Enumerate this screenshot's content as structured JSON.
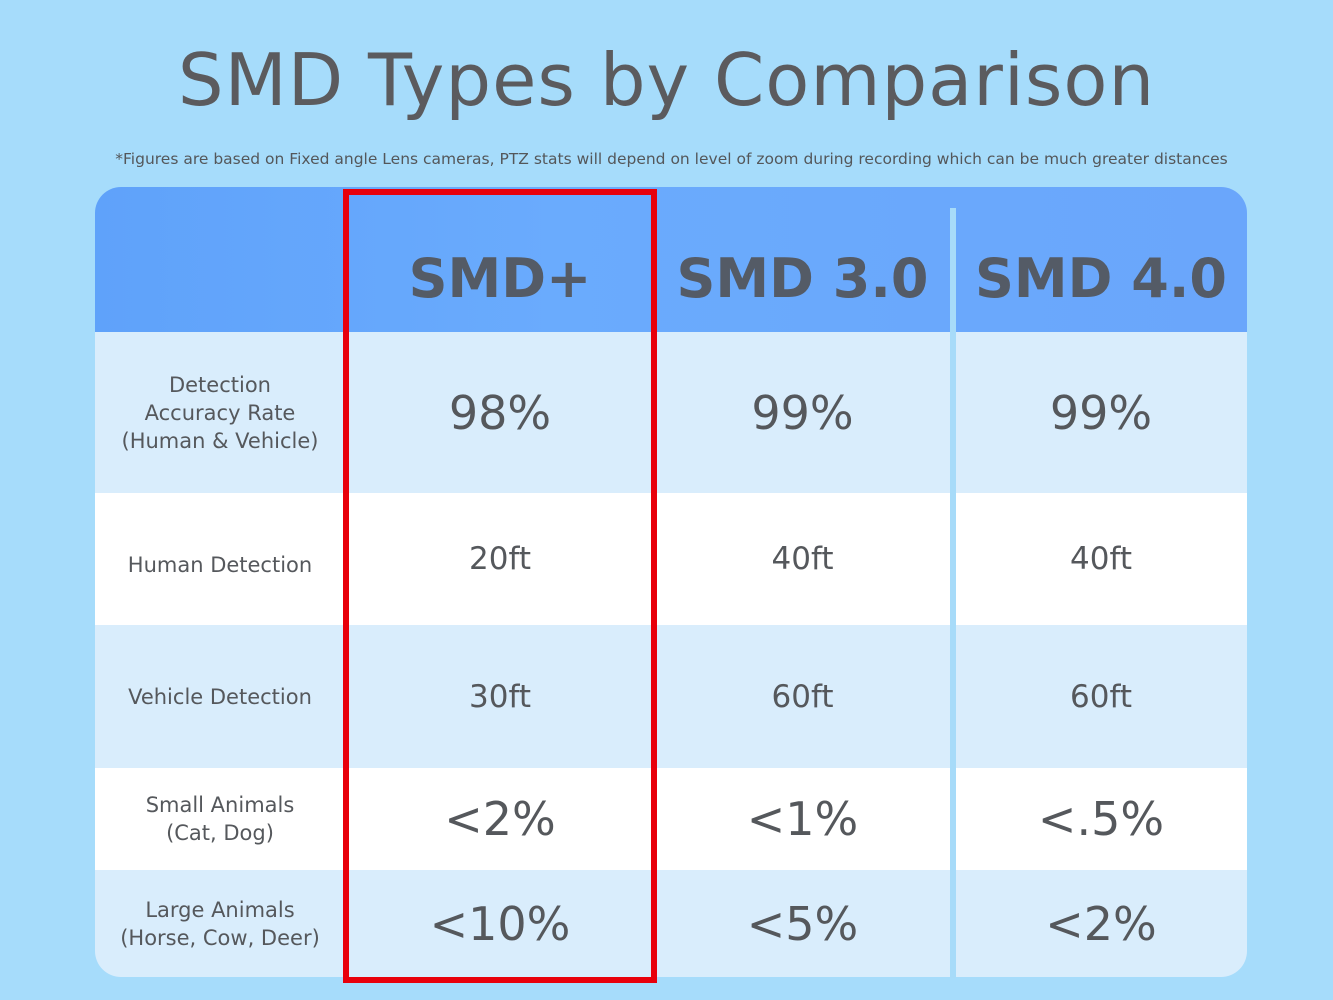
{
  "title": "SMD Types by Comparison",
  "note": "*Figures are based on Fixed angle Lens cameras, PTZ stats will depend on level of zoom during recording which can be much greater distances",
  "columns": [
    "SMD+",
    "SMD 3.0",
    "SMD 4.0"
  ],
  "highlighted_column": "SMD+",
  "highlight_color": "#e8000b",
  "rows": [
    {
      "label": "Detection\nAccuracy Rate\n(Human & Vehicle)",
      "values": [
        "98%",
        "99%",
        "99%"
      ]
    },
    {
      "label": "Human Detection",
      "values": [
        "20ft",
        "40ft",
        "40ft"
      ]
    },
    {
      "label": "Vehicle Detection",
      "values": [
        "30ft",
        "60ft",
        "60ft"
      ]
    },
    {
      "label": "Small Animals\n(Cat, Dog)",
      "values": [
        "<2%",
        "<1%",
        "<.5%"
      ]
    },
    {
      "label": "Large Animals\n(Horse, Cow, Deer)",
      "values": [
        "<10%",
        "<5%",
        "<2%"
      ]
    }
  ]
}
